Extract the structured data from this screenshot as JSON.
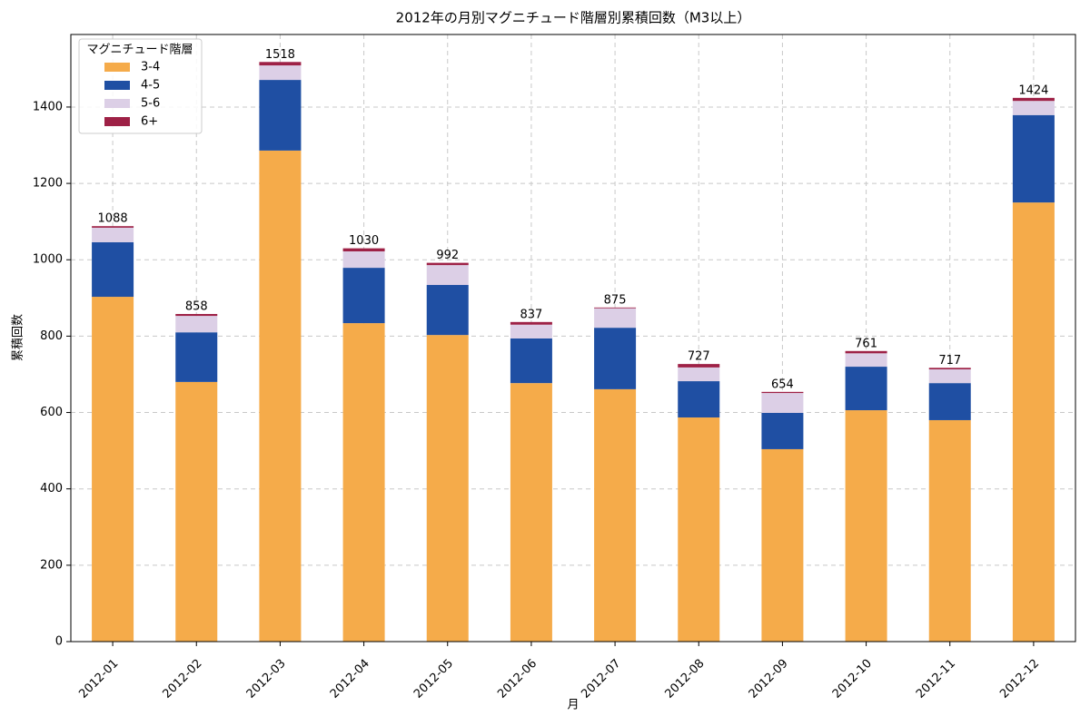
{
  "chart_data": {
    "type": "stacked_bar",
    "title": "2012年の月別マグニチュード階層別累積回数（M3以上）",
    "x_label": "月",
    "y_label": "累積回数",
    "legend_title": "マグニチュード階層",
    "legend_position": "upper left",
    "categories": [
      "2012-01",
      "2012-02",
      "2012-03",
      "2012-04",
      "2012-05",
      "2012-06",
      "2012-07",
      "2012-08",
      "2012-09",
      "2012-10",
      "2012-11",
      "2012-12"
    ],
    "series": [
      {
        "name": "3-4",
        "color": "#f5ab4a",
        "values": [
          903,
          680,
          1286,
          834,
          803,
          677,
          661,
          587,
          504,
          606,
          580,
          1150
        ]
      },
      {
        "name": "4-5",
        "color": "#1f4fa3",
        "values": [
          143,
          130,
          185,
          145,
          131,
          117,
          161,
          95,
          95,
          114,
          97,
          229
        ]
      },
      {
        "name": "5-6",
        "color": "#dccfe6",
        "values": [
          38,
          43,
          38,
          43,
          52,
          36,
          51,
          36,
          52,
          35,
          36,
          37
        ]
      },
      {
        "name": "6+",
        "color": "#9e2146",
        "values": [
          4,
          5,
          9,
          8,
          6,
          7,
          2,
          9,
          3,
          6,
          4,
          8
        ]
      }
    ],
    "totals": [
      1088,
      858,
      1518,
      1030,
      992,
      837,
      875,
      727,
      654,
      761,
      717,
      1424
    ],
    "ylim": [
      0,
      1590
    ],
    "yticks": [
      0,
      200,
      400,
      600,
      800,
      1000,
      1200,
      1400
    ],
    "grid": true
  }
}
